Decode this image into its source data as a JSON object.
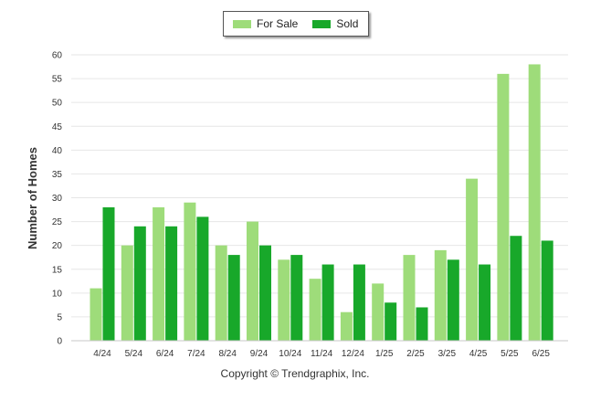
{
  "legend": {
    "items": [
      {
        "label": "For Sale",
        "color": "#9edc7a"
      },
      {
        "label": "Sold",
        "color": "#18a82a"
      }
    ]
  },
  "footer": {
    "credit": "Copyright © Trendgraphix, Inc."
  },
  "chart_data": {
    "type": "bar",
    "ylabel": "Number of Homes",
    "xlabel": "",
    "ylim": [
      0,
      60
    ],
    "yticks": [
      0,
      5,
      10,
      15,
      20,
      25,
      30,
      35,
      40,
      45,
      50,
      55,
      60
    ],
    "grid": true,
    "legend_position": "top",
    "categories": [
      "4/24",
      "5/24",
      "6/24",
      "7/24",
      "8/24",
      "9/24",
      "10/24",
      "11/24",
      "12/24",
      "1/25",
      "2/25",
      "3/25",
      "4/25",
      "5/25",
      "6/25"
    ],
    "series": [
      {
        "name": "For Sale",
        "color": "#9edc7a",
        "values": [
          11,
          20,
          28,
          29,
          20,
          25,
          17,
          13,
          6,
          12,
          18,
          19,
          34,
          56,
          58
        ]
      },
      {
        "name": "Sold",
        "color": "#18a82a",
        "values": [
          28,
          24,
          24,
          26,
          18,
          20,
          18,
          16,
          16,
          8,
          7,
          17,
          16,
          22,
          21
        ]
      }
    ]
  }
}
